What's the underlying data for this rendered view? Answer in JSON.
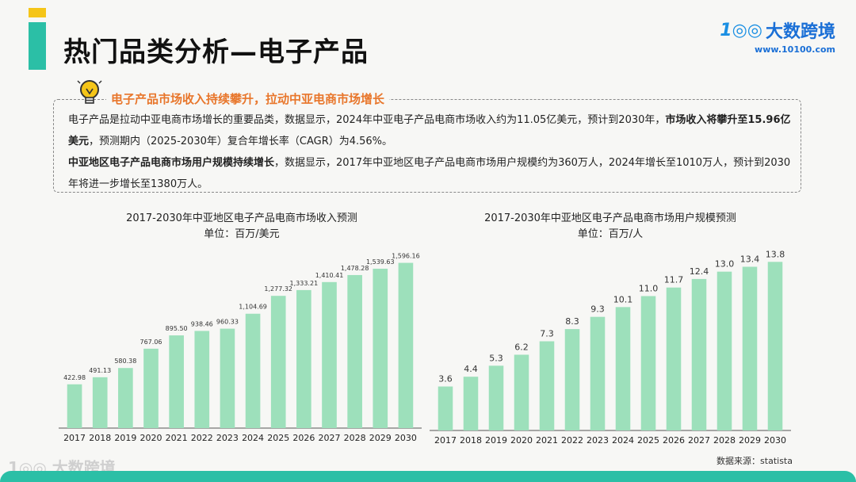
{
  "header": {
    "title": "热门品类分析—电子产品",
    "brand_name": "大数跨境",
    "brand_mark": "1◎◎",
    "brand_url": "www.10100.com"
  },
  "summary": {
    "heading": "电子产品市场收入持续攀升，拉动中亚电商市场增长",
    "p1_part1": "电子产品是拉动中亚电商市场增长的重要品类，数据显示，2024年中亚电子产品电商市场收入约为11.05亿美元，预计到2030年，",
    "p1_bold": "市场收入将攀升至15.96亿美元",
    "p1_part2": "，预测期内（2025-2030年）复合年增长率（CAGR）为4.56%。",
    "p2_bold": "中亚地区电子产品电商市场用户规模持续增长",
    "p2_part": "，数据显示，2017年中亚地区电子产品电商市场用户规模约为360万人，2024年增长至1010万人，预计到2030年将进一步增长至1380万人。"
  },
  "chart_data": [
    {
      "type": "bar",
      "title": "2017-2030年中亚地区电子产品电商市场收入预测",
      "subtitle": "单位：百万/美元",
      "categories": [
        "2017",
        "2018",
        "2019",
        "2020",
        "2021",
        "2022",
        "2023",
        "2024",
        "2025",
        "2026",
        "2027",
        "2028",
        "2029",
        "2030"
      ],
      "values": [
        422.98,
        491.13,
        580.38,
        767.06,
        895.5,
        938.46,
        960.33,
        1104.69,
        1277.32,
        1333.21,
        1410.41,
        1478.28,
        1539.63,
        1596.16
      ],
      "labels": [
        "422.98",
        "491.13",
        "580.38",
        "767.06",
        "895.50",
        "938.46",
        "960.33",
        "1,104.69",
        "1,277.32",
        "1,333.21",
        "1,410.41",
        "1,478.28",
        "1,539.63",
        "1,596.16"
      ],
      "ylim": [
        0,
        1700
      ],
      "color": "#9de0bb",
      "grid": false
    },
    {
      "type": "bar",
      "title": "2017-2030年中亚地区电子产品电商市场用户规模预测",
      "subtitle": "单位：百万/人",
      "categories": [
        "2017",
        "2018",
        "2019",
        "2020",
        "2021",
        "2022",
        "2023",
        "2024",
        "2025",
        "2026",
        "2027",
        "2028",
        "2029",
        "2030"
      ],
      "values": [
        3.6,
        4.4,
        5.3,
        6.2,
        7.3,
        8.3,
        9.3,
        10.1,
        11.0,
        11.7,
        12.4,
        13.0,
        13.4,
        13.8
      ],
      "labels": [
        "3.6",
        "4.4",
        "5.3",
        "6.2",
        "7.3",
        "8.3",
        "9.3",
        "10.1",
        "11.0",
        "11.7",
        "12.4",
        "13.0",
        "13.4",
        "13.8"
      ],
      "ylim": [
        0,
        14.6
      ],
      "color": "#9de0bb",
      "grid": false
    }
  ],
  "footer": {
    "source": "数据来源：statista",
    "watermark": "1◎◎ 大数跨境"
  }
}
